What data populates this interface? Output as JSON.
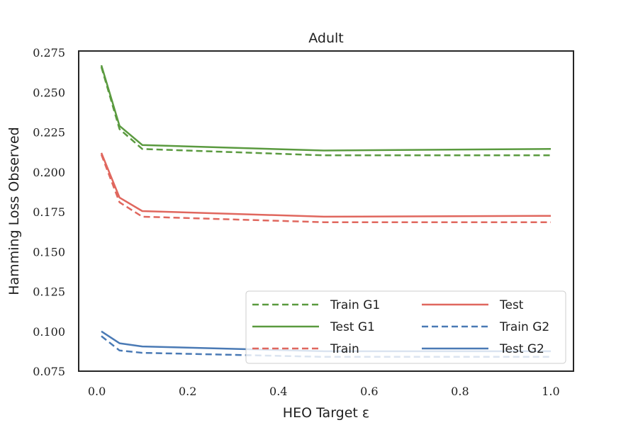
{
  "chart_data": {
    "type": "line",
    "title": "Adult",
    "xlabel": "HEO Target ε",
    "ylabel": "Hamming Loss Observed",
    "xlim": [
      -0.04,
      1.05
    ],
    "ylim": [
      0.075,
      0.276
    ],
    "xticks": [
      0.0,
      0.2,
      0.4,
      0.6,
      0.8,
      1.0
    ],
    "xtick_labels": [
      "0.0",
      "0.2",
      "0.4",
      "0.6",
      "0.8",
      "1.0"
    ],
    "yticks": [
      0.075,
      0.1,
      0.125,
      0.15,
      0.175,
      0.2,
      0.225,
      0.25,
      0.275
    ],
    "ytick_labels": [
      "0.075",
      "0.100",
      "0.125",
      "0.150",
      "0.175",
      "0.200",
      "0.225",
      "0.250",
      "0.275"
    ],
    "grid": false,
    "legend_position": "lower-right",
    "x": [
      0.01,
      0.05,
      0.1,
      0.5,
      1.0
    ],
    "series": [
      {
        "name": "Train G1",
        "color": "#5a9a3f",
        "dash": "dashed",
        "values": [
          0.266,
          0.227,
          0.2145,
          0.2105,
          0.2105
        ]
      },
      {
        "name": "Test G1",
        "color": "#5a9a3f",
        "dash": "solid",
        "values": [
          0.267,
          0.229,
          0.217,
          0.2135,
          0.2145
        ]
      },
      {
        "name": "Train",
        "color": "#e0675e",
        "dash": "dashed",
        "values": [
          0.211,
          0.181,
          0.172,
          0.1685,
          0.1685
        ]
      },
      {
        "name": "Test",
        "color": "#e0675e",
        "dash": "solid",
        "values": [
          0.212,
          0.184,
          0.1755,
          0.172,
          0.1725
        ]
      },
      {
        "name": "Train G2",
        "color": "#4a7ab5",
        "dash": "dashed",
        "values": [
          0.097,
          0.088,
          0.0865,
          0.084,
          0.084
        ]
      },
      {
        "name": "Test G2",
        "color": "#4a7ab5",
        "dash": "solid",
        "values": [
          0.1,
          0.0925,
          0.0905,
          0.0875,
          0.0875
        ]
      }
    ],
    "legend_columns": [
      [
        "Train G1",
        "Test G1",
        "Train"
      ],
      [
        "Test",
        "Train G2",
        "Test G2"
      ]
    ]
  }
}
